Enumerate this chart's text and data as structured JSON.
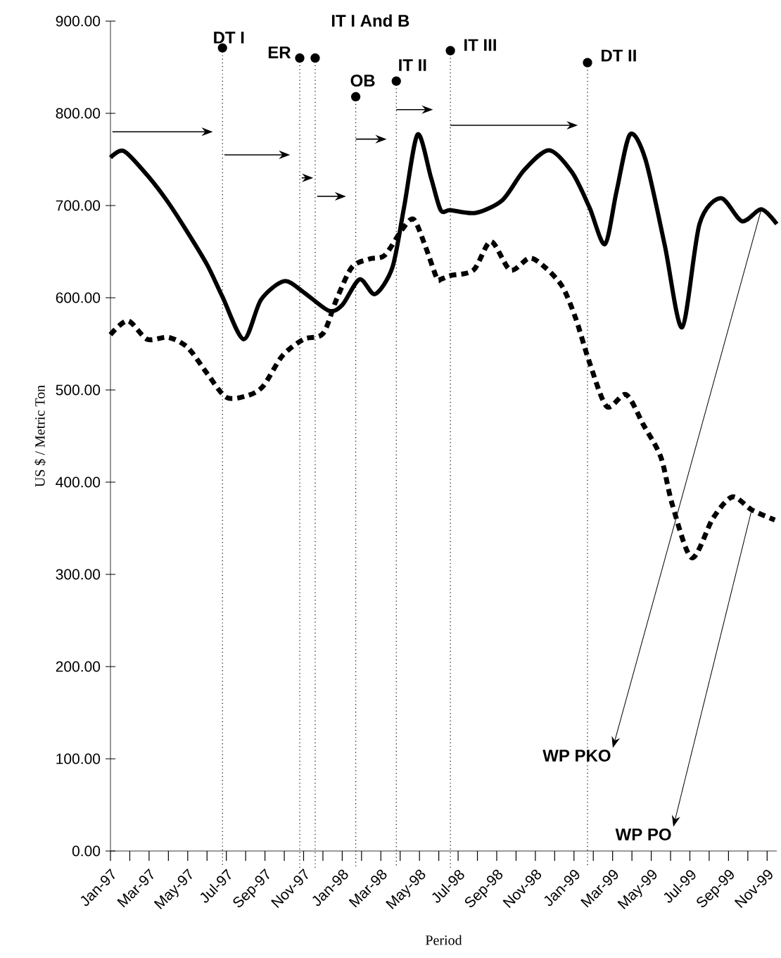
{
  "chart_data": {
    "type": "line",
    "xlabel": "Period",
    "ylabel": "US $ / Metric Ton",
    "xlim": [
      "1997-01",
      "1999-11-16"
    ],
    "ylim": [
      0,
      900
    ],
    "xticks": [
      {
        "value": "1997-01",
        "label": "Jan-97"
      },
      {
        "value": "1997-02",
        "label": null
      },
      {
        "value": "1997-03",
        "label": "Mar-97"
      },
      {
        "value": "1997-04",
        "label": null
      },
      {
        "value": "1997-05",
        "label": "May-97"
      },
      {
        "value": "1997-06",
        "label": null
      },
      {
        "value": "1997-07",
        "label": "Jul-97"
      },
      {
        "value": "1997-08",
        "label": null
      },
      {
        "value": "1997-09",
        "label": "Sep-97"
      },
      {
        "value": "1997-10",
        "label": null
      },
      {
        "value": "1997-11",
        "label": "Nov-97"
      },
      {
        "value": "1997-12",
        "label": null
      },
      {
        "value": "1998-01",
        "label": "Jan-98"
      },
      {
        "value": "1998-02",
        "label": null
      },
      {
        "value": "1998-03",
        "label": "Mar-98"
      },
      {
        "value": "1998-04",
        "label": null
      },
      {
        "value": "1998-05",
        "label": "May-98"
      },
      {
        "value": "1998-06",
        "label": null
      },
      {
        "value": "1998-07",
        "label": "Jul-98"
      },
      {
        "value": "1998-08",
        "label": null
      },
      {
        "value": "1998-09",
        "label": "Sep-98"
      },
      {
        "value": "1998-10",
        "label": null
      },
      {
        "value": "1998-11",
        "label": "Nov-98"
      },
      {
        "value": "1998-12",
        "label": null
      },
      {
        "value": "1999-01",
        "label": "Jan-99"
      },
      {
        "value": "1999-02",
        "label": null
      },
      {
        "value": "1999-03",
        "label": "Mar-99"
      },
      {
        "value": "1999-04",
        "label": null
      },
      {
        "value": "1999-05",
        "label": "May-99"
      },
      {
        "value": "1999-06",
        "label": null
      },
      {
        "value": "1999-07",
        "label": "Jul-99"
      },
      {
        "value": "1999-08",
        "label": null
      },
      {
        "value": "1999-09",
        "label": "Sep-99"
      },
      {
        "value": "1999-10",
        "label": null
      },
      {
        "value": "1999-11",
        "label": "Nov-99"
      }
    ],
    "yticks": [
      {
        "value": 0,
        "label": "0.00"
      },
      {
        "value": 100,
        "label": "100.00"
      },
      {
        "value": 200,
        "label": "200.00"
      },
      {
        "value": 300,
        "label": "300.00"
      },
      {
        "value": 400,
        "label": "400.00"
      },
      {
        "value": 500,
        "label": "500.00"
      },
      {
        "value": 600,
        "label": "600.00"
      },
      {
        "value": 700,
        "label": "700.00"
      },
      {
        "value": 800,
        "label": "800.00"
      },
      {
        "value": 900,
        "label": "900.00"
      }
    ],
    "grid": false,
    "legend": false,
    "marker": "none",
    "series": [
      {
        "name": "WP PKO",
        "color": "#000000",
        "line_style": "solid",
        "x": [
          "1997-01",
          "1997-01-22",
          "1997-02-28",
          "1997-03-28",
          "1997-04-28",
          "1997-06",
          "1997-06-25",
          "1997-07-28",
          "1997-08-25",
          "1997-10",
          "1997-11",
          "1997-12-10",
          "1998-01",
          "1998-01-28",
          "1998-02-22",
          "1998-03-19",
          "1998-04-07",
          "1998-04-28",
          "1998-05-19",
          "1998-06-04",
          "1998-06-19",
          "1998-07-28",
          "1998-09-10",
          "1998-10-13",
          "1998-11-22",
          "1998-12-28",
          "1999-01-25",
          "1999-02-19",
          "1999-03-07",
          "1999-03-28",
          "1999-04-22",
          "1999-05-22",
          "1999-06-19",
          "1999-07-16",
          "1999-08-19",
          "1999-09-22",
          "1999-10-22",
          "1999-11-16"
        ],
        "values": [
          752,
          759,
          733,
          706,
          674,
          636,
          601,
          555,
          598,
          618,
          606,
          586,
          592,
          620,
          604,
          633,
          698,
          777,
          730,
          695,
          695,
          692,
          706,
          738,
          760,
          736,
          698,
          658,
          715,
          777,
          750,
          657,
          568,
          680,
          708,
          683,
          696,
          680
        ]
      },
      {
        "name": "WP PO",
        "color": "#000000",
        "line_style": "dotted",
        "x": [
          "1997-01",
          "1997-01-28",
          "1997-02-28",
          "1997-04",
          "1997-05",
          "1997-06",
          "1997-07",
          "1997-08-04",
          "1997-08-28",
          "1997-09-28",
          "1997-11",
          "1997-12",
          "1997-12-22",
          "1998-01-16",
          "1998-02-13",
          "1998-03-07",
          "1998-04-04",
          "1998-04-22",
          "1998-05-10",
          "1998-05-28",
          "1998-06-04",
          "1998-06-19",
          "1998-07-25",
          "1998-08-22",
          "1998-09-22",
          "1998-10-22",
          "1998-11-16",
          "1998-12-13",
          "1999-01-04",
          "1999-01-25",
          "1999-02-22",
          "1999-03-22",
          "1999-04-19",
          "1999-05-16",
          "1999-06-04",
          "1999-07-04",
          "1999-08-07",
          "1999-09-07",
          "1999-10-07",
          "1999-11-13"
        ],
        "values": [
          560,
          575,
          555,
          557,
          546,
          518,
          492,
          494,
          504,
          537,
          555,
          561,
          598,
          633,
          642,
          646,
          674,
          685,
          656,
          621,
          620,
          624,
          630,
          661,
          630,
          643,
          633,
          612,
          577,
          530,
          482,
          495,
          462,
          427,
          375,
          318,
          361,
          384,
          370,
          359
        ]
      }
    ],
    "ref_lines": [
      {
        "axis": "x",
        "value": "1997-06-25",
        "label": "DT I",
        "color": "#000000",
        "line_style": "dotted"
      },
      {
        "axis": "x",
        "value": "1997-10-25",
        "label": "ER",
        "color": "#000000",
        "line_style": "dotted"
      },
      {
        "axis": "x",
        "value": "1997-11-19",
        "label": "IT I And B",
        "color": "#000000",
        "line_style": "dotted"
      },
      {
        "axis": "x",
        "value": "1998-01-22",
        "label": "OB",
        "color": "#000000",
        "line_style": "dotted"
      },
      {
        "axis": "x",
        "value": "1998-03-25",
        "label": "IT II",
        "color": "#000000",
        "line_style": "dotted"
      },
      {
        "axis": "x",
        "value": "1998-06-19",
        "label": "IT III",
        "color": "#000000",
        "line_style": "dotted"
      },
      {
        "axis": "x",
        "value": "1999-01-22",
        "label": "DT II",
        "color": "#000000",
        "line_style": "dotted"
      }
    ]
  }
}
